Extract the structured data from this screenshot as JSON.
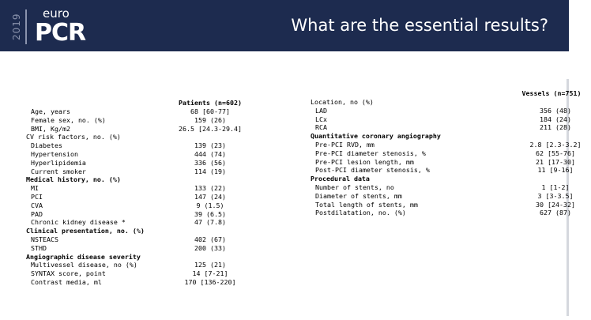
{
  "header": {
    "year": "2019",
    "brand_top": "euro",
    "brand_main": "PCR",
    "title": "What are the essential results?",
    "colors": {
      "header_bg": "#1d2b4f",
      "header_text": "#ffffff",
      "year_text": "#8a93ad"
    }
  },
  "patients_table": {
    "column_header": "Patients (n=602)",
    "rows": [
      {
        "label": "Age, years",
        "value": "68 [60-77]",
        "type": "sub"
      },
      {
        "label": "Female sex, no. (%)",
        "value": "159 (26)",
        "type": "sub"
      },
      {
        "label": "BMI, Kg/m2",
        "value": "26.5 [24.3-29.4]",
        "type": "sub"
      },
      {
        "label": "CV risk factors, no. (%)",
        "value": "",
        "type": "plain"
      },
      {
        "label": "Diabetes",
        "value": "139 (23)",
        "type": "sub"
      },
      {
        "label": "Hypertension",
        "value": "444 (74)",
        "type": "sub"
      },
      {
        "label": "Hyperlipidemia",
        "value": "336 (56)",
        "type": "sub"
      },
      {
        "label": "Current smoker",
        "value": "114 (19)",
        "type": "sub"
      },
      {
        "label": "Medical history, no. (%)",
        "value": "",
        "type": "sec"
      },
      {
        "label": "MI",
        "value": "133 (22)",
        "type": "sub"
      },
      {
        "label": "PCI",
        "value": "147 (24)",
        "type": "sub"
      },
      {
        "label": "CVA",
        "value": "9 (1.5)",
        "type": "sub"
      },
      {
        "label": "PAD",
        "value": "39 (6.5)",
        "type": "sub"
      },
      {
        "label": "Chronic kidney disease *",
        "value": "47 (7.8)",
        "type": "sub"
      },
      {
        "label": "Clinical presentation, no. (%)",
        "value": "",
        "type": "sec"
      },
      {
        "label": "NSTEACS",
        "value": "402 (67)",
        "type": "sub"
      },
      {
        "label": "STHD",
        "value": "200 (33)",
        "type": "sub"
      },
      {
        "label": "Angiographic disease severity",
        "value": "",
        "type": "sec"
      },
      {
        "label": "Multivessel disease, no (%)",
        "value": "125 (21)",
        "type": "sub"
      },
      {
        "label": "SYNTAX score, point",
        "value": "14 [7-21]",
        "type": "sub"
      },
      {
        "label": "Contrast media, ml",
        "value": "170 [136-220]",
        "type": "sub"
      }
    ]
  },
  "vessels_table": {
    "column_header": "Vessels (n=751)",
    "rows": [
      {
        "label": "Location, no (%)",
        "value": "",
        "type": "plain"
      },
      {
        "label": "LAD",
        "value": "356 (48)",
        "type": "sub"
      },
      {
        "label": "LCx",
        "value": "184 (24)",
        "type": "sub"
      },
      {
        "label": "RCA",
        "value": "211 (28)",
        "type": "sub"
      },
      {
        "label": "Quantitative coronary angiography",
        "value": "",
        "type": "sec"
      },
      {
        "label": "Pre-PCI RVD, mm",
        "value": "2.8 [2.3-3.2]",
        "type": "sub"
      },
      {
        "label": "Pre-PCI diameter stenosis, %",
        "value": "62 [55-76]",
        "type": "sub"
      },
      {
        "label": "Pre-PCI lesion length, mm",
        "value": "21 [17-30]",
        "type": "sub"
      },
      {
        "label": "Post-PCI diameter stenosis, %",
        "value": "11 [9-16]",
        "type": "sub"
      },
      {
        "label": "Procedural data",
        "value": "",
        "type": "sec"
      },
      {
        "label": "Number of stents, no",
        "value": "1 [1-2]",
        "type": "sub"
      },
      {
        "label": "Diameter of stents, mm",
        "value": "3 [3-3.5]",
        "type": "sub"
      },
      {
        "label": "Total length of stents, mm",
        "value": "30 [24-32]",
        "type": "sub"
      },
      {
        "label": "Postdilatation, no. (%)",
        "value": "627 (87)",
        "type": "sub"
      }
    ]
  }
}
